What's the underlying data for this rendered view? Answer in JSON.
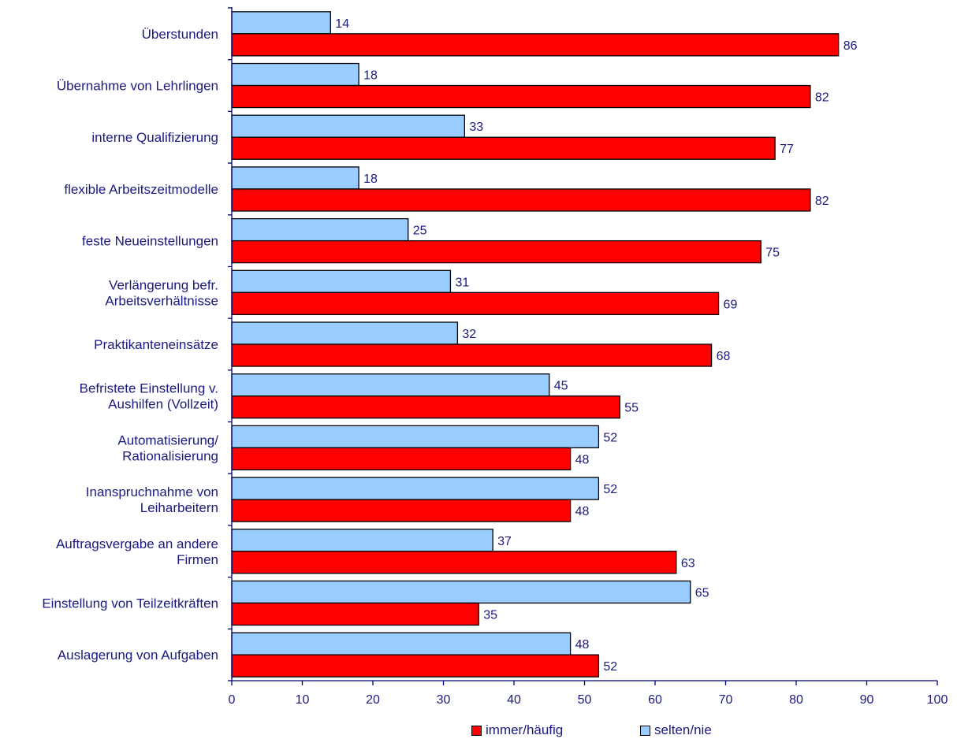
{
  "chart_data": {
    "type": "bar",
    "orientation": "horizontal",
    "categories": [
      [
        "Überstunden"
      ],
      [
        "Übernahme von Lehrlingen"
      ],
      [
        "interne Qualifizierung"
      ],
      [
        "flexible Arbeitszeitmodelle"
      ],
      [
        "feste Neueinstellungen"
      ],
      [
        "Verlängerung befr.",
        "Arbeitsverhältnisse"
      ],
      [
        "Praktikanteneinsätze"
      ],
      [
        "Befristete Einstellung v.",
        "Aushilfen (Vollzeit)"
      ],
      [
        "Automatisierung/",
        "Rationalisierung"
      ],
      [
        "Inanspruchnahme von",
        "Leiharbeitern"
      ],
      [
        "Auftragsvergabe an andere",
        "Firmen"
      ],
      [
        "Einstellung von Teilzeitkräften"
      ],
      [
        "Auslagerung von Aufgaben"
      ]
    ],
    "series": [
      {
        "name": "selten/nie",
        "color": "#99ccff",
        "values": [
          14,
          18,
          33,
          18,
          25,
          31,
          32,
          45,
          52,
          52,
          37,
          65,
          48
        ]
      },
      {
        "name": "immer/häufig",
        "color": "#ff0000",
        "values": [
          86,
          82,
          77,
          82,
          75,
          69,
          68,
          55,
          48,
          48,
          63,
          35,
          52
        ]
      }
    ],
    "xlim": [
      0,
      100
    ],
    "xticks": [
      0,
      10,
      20,
      30,
      40,
      50,
      60,
      70,
      80,
      90,
      100
    ],
    "legend_position": "bottom",
    "title": "",
    "xlabel": "",
    "ylabel": "",
    "grid": false
  },
  "legend": {
    "items": [
      {
        "label": "immer/häufig",
        "color": "#ff0000"
      },
      {
        "label": "selten/nie",
        "color": "#99ccff"
      }
    ]
  }
}
